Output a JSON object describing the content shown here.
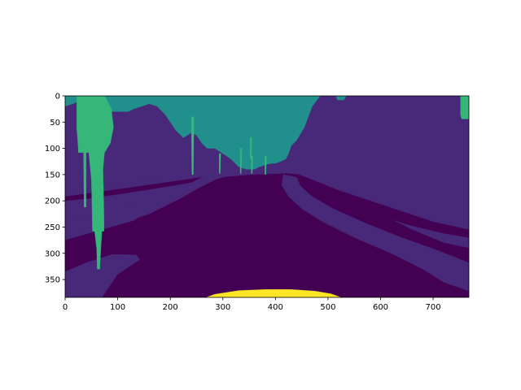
{
  "chart_data": {
    "type": "heatmap",
    "title": "",
    "xlabel": "",
    "ylabel": "",
    "xlim": [
      0,
      768
    ],
    "ylim": [
      384,
      0
    ],
    "x_ticks": [
      0,
      100,
      200,
      300,
      400,
      500,
      600,
      700
    ],
    "y_ticks": [
      0,
      50,
      100,
      150,
      200,
      250,
      300,
      350
    ],
    "colormap": "viridis",
    "class_colors": {
      "road": "#440154",
      "sidewalk": "#482878",
      "vegetation": "#21908d",
      "pole": "#35b779",
      "car": "#fde725"
    }
  }
}
